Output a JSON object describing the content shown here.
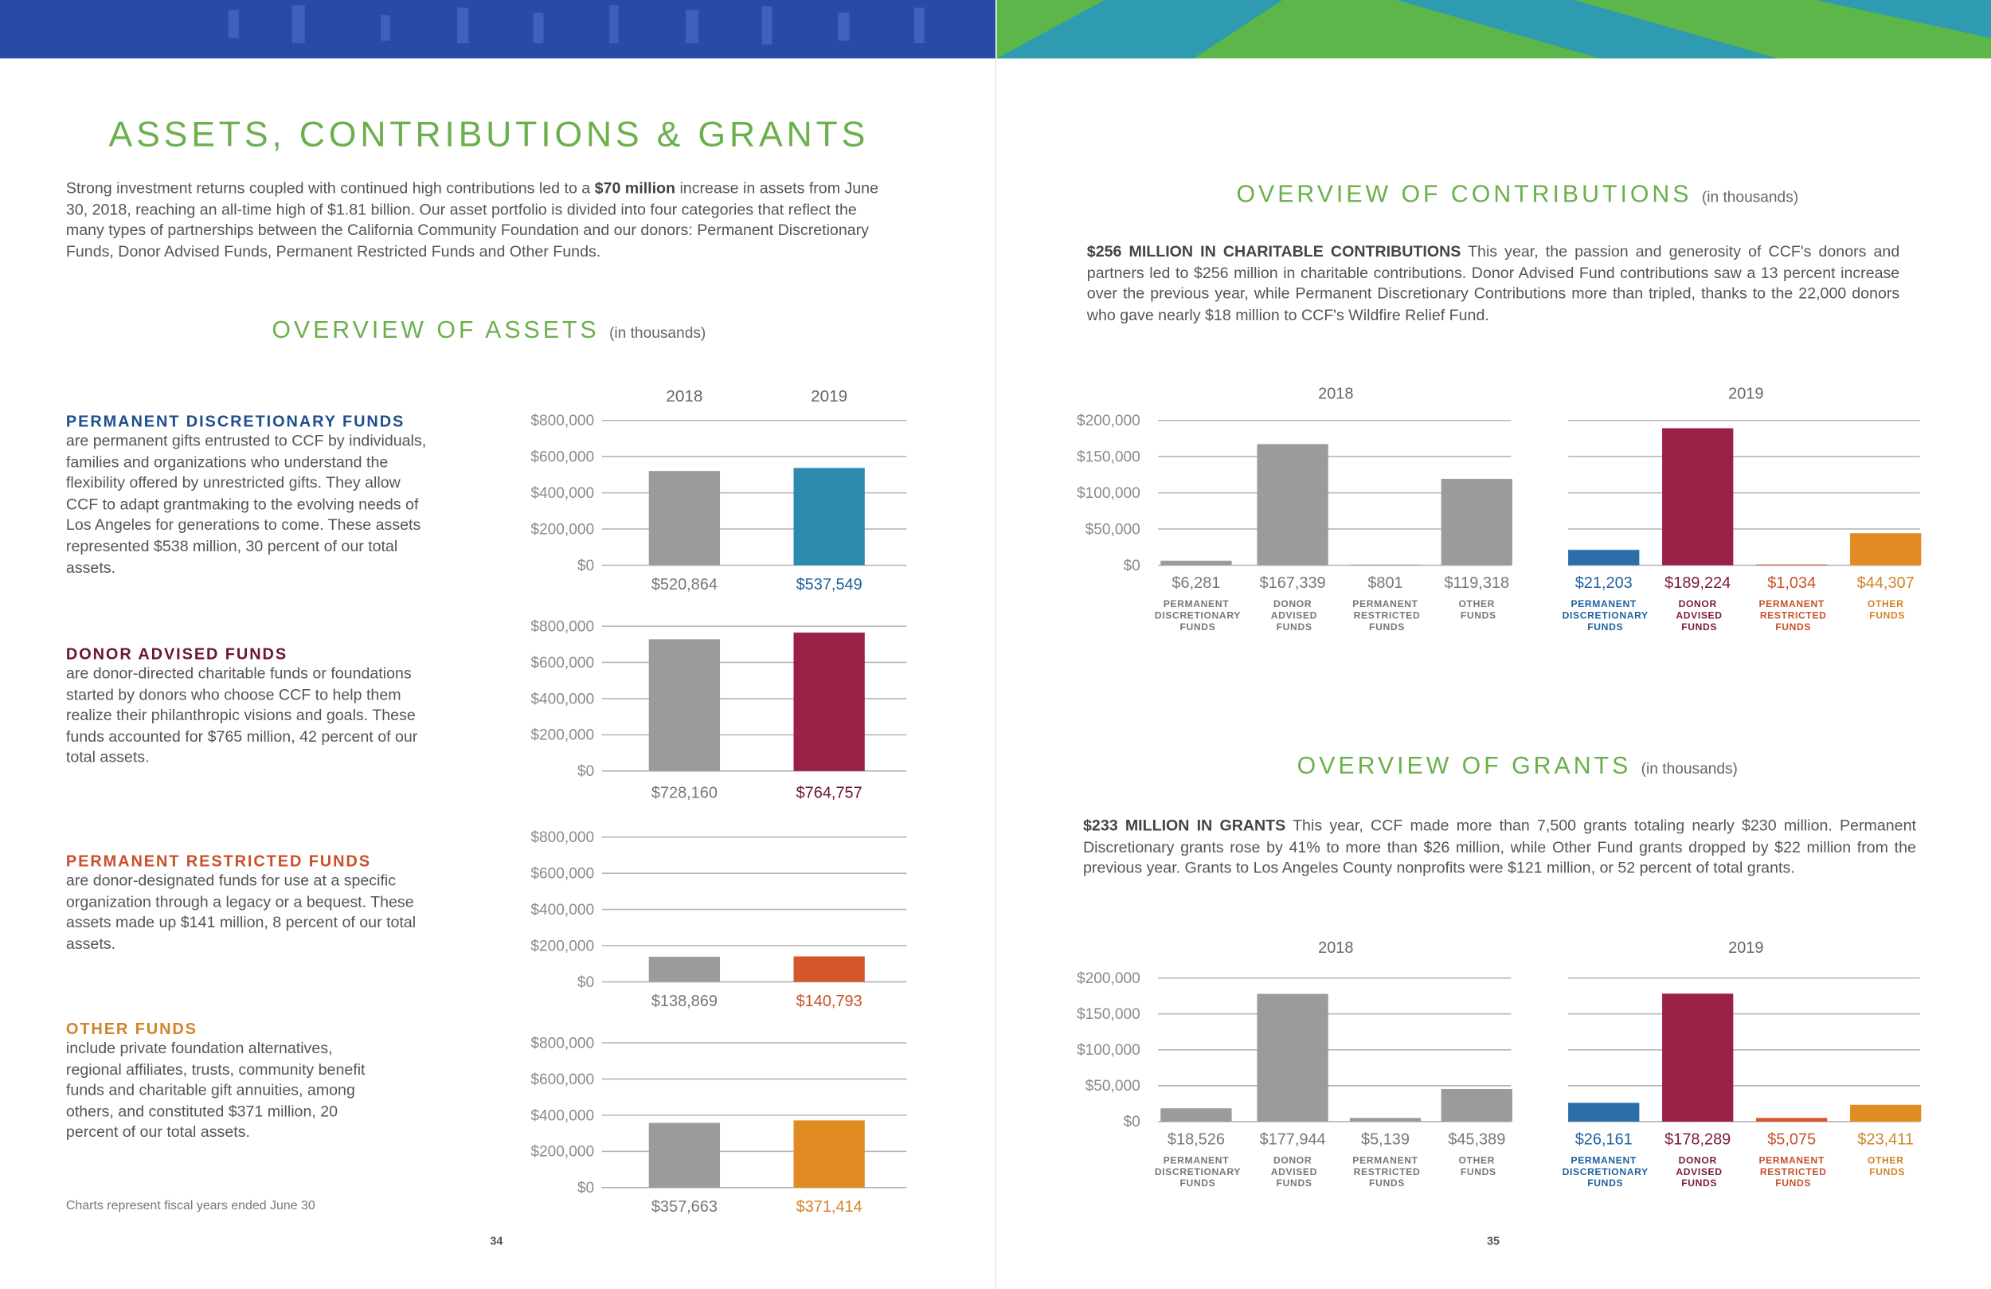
{
  "title": "ASSETS, CONTRIBUTIONS & GRANTS",
  "intro": [
    "Strong investment returns coupled with continued high contributions led to a ",
    "$70 million",
    " increase in assets from June 30, 2018, reaching an all-time high of $1.81 billion. Our asset portfolio is divided into four categories that reflect the many types of partnerships between the California Community Foundation and our donors: Permanent Discretionary Funds, Donor Advised Funds, Permanent Restricted Funds and Other Funds."
  ],
  "assets": {
    "heading": "OVERVIEW OF ASSETS",
    "unit": "(in thousands)"
  },
  "funds": [
    {
      "name": "PERMANENT DISCRETIONARY FUNDS",
      "color": "#1f4e8c",
      "text": "are permanent gifts entrusted to CCF by individuals, families and organizations who understand the flexibility offered by unrestricted gifts. They allow CCF to adapt grantmaking to the evolving needs of Los Angeles for generations to come. These assets represented $538 million, 30 percent of our total assets."
    },
    {
      "name": "DONOR ADVISED FUNDS",
      "color": "#6b1535",
      "text": "are donor-directed charitable funds or foundations started by donors who choose CCF to help them realize their philanthropic visions and goals. These funds accounted for $765 million, 42 percent of our total assets."
    },
    {
      "name": "PERMANENT RESTRICTED FUNDS",
      "color": "#c8502a",
      "text": "are donor-designated funds for use at a specific organization through a legacy or a bequest. These assets made up $141 million, 8 percent of our total assets."
    },
    {
      "name": "OTHER FUNDS",
      "color": "#d0832a",
      "text": "include private foundation alternatives, regional affiliates, trusts, community benefit funds and charitable gift annuities, among others, and constituted $371 million, 20 percent of our total assets."
    }
  ],
  "footnote": "Charts represent fiscal years ended June 30",
  "page_numbers": [
    "34",
    "35"
  ],
  "contributions": {
    "heading": "OVERVIEW OF CONTRIBUTIONS",
    "unit": "(in thousands)",
    "lead": "$256 MILLION IN CHARITABLE CONTRIBUTIONS",
    "text": " This year, the passion and generosity of CCF's donors and partners led to $256 million in charitable contributions. Donor Advised Fund contributions saw a 13 percent increase over the previous year, while Permanent Discretionary Contributions more than tripled, thanks to the 22,000 donors who gave nearly $18 million to CCF's Wildfire Relief Fund."
  },
  "grants": {
    "heading": "OVERVIEW OF GRANTS",
    "unit": "(in thousands)",
    "lead": "$233 MILLION IN GRANTS",
    "text": " This year, CCF made more than 7,500 grants totaling nearly $230 million. Permanent Discretionary grants rose by 41% to more than $26 million, while Other Fund grants dropped by $22 million from the previous year. Grants to Los Angeles County nonprofits were $121 million, or 52 percent of total grants."
  },
  "chart_data": [
    {
      "type": "bar",
      "categories": [
        "2018",
        "2019"
      ],
      "values": [
        520864,
        537549
      ],
      "value_labels": [
        "$520,864",
        "$537,549"
      ],
      "colors": [
        "#9b9b9b",
        "#2d8bb0"
      ],
      "text_colors": [
        "#777777",
        "#1f5f9e"
      ],
      "category_colors": [
        "#666666",
        "#666666"
      ],
      "ylim": [
        0,
        800000
      ],
      "yticks": [
        {
          "value": 0,
          "label": "$0"
        },
        {
          "value": 200000,
          "label": "$200,000"
        },
        {
          "value": 400000,
          "label": "$400,000"
        },
        {
          "value": 600000,
          "label": "$600,000"
        },
        {
          "value": 800000,
          "label": "$800,000"
        }
      ],
      "grid": true,
      "show_ytick_labels": true
    },
    {
      "type": "bar",
      "categories": [
        null,
        null
      ],
      "values": [
        728160,
        764757
      ],
      "value_labels": [
        "$728,160",
        "$764,757"
      ],
      "colors": [
        "#9b9b9b",
        "#9b2045"
      ],
      "text_colors": [
        "#777777",
        "#6b1535"
      ],
      "ylim": [
        0,
        800000
      ],
      "yticks": [
        {
          "value": 0,
          "label": "$0"
        },
        {
          "value": 200000,
          "label": "$200,000"
        },
        {
          "value": 400000,
          "label": "$400,000"
        },
        {
          "value": 600000,
          "label": "$600,000"
        },
        {
          "value": 800000,
          "label": "$800,000"
        }
      ],
      "grid": true,
      "show_ytick_labels": true
    },
    {
      "type": "bar",
      "categories": [
        null,
        null
      ],
      "values": [
        138869,
        140793
      ],
      "value_labels": [
        "$138,869",
        "$140,793"
      ],
      "colors": [
        "#9b9b9b",
        "#d5562a"
      ],
      "text_colors": [
        "#777777",
        "#c8502a"
      ],
      "ylim": [
        0,
        800000
      ],
      "yticks": [
        {
          "value": 0,
          "label": "$0"
        },
        {
          "value": 200000,
          "label": "$200,000"
        },
        {
          "value": 400000,
          "label": "$400,000"
        },
        {
          "value": 600000,
          "label": "$600,000"
        },
        {
          "value": 800000,
          "label": "$800,000"
        }
      ],
      "grid": true,
      "show_ytick_labels": true
    },
    {
      "type": "bar",
      "categories": [
        null,
        null
      ],
      "values": [
        357663,
        371414
      ],
      "value_labels": [
        "$357,663",
        "$371,414"
      ],
      "colors": [
        "#9b9b9b",
        "#e08c23"
      ],
      "text_colors": [
        "#777777",
        "#d0832a"
      ],
      "ylim": [
        0,
        800000
      ],
      "yticks": [
        {
          "value": 0,
          "label": "$0"
        },
        {
          "value": 200000,
          "label": "$200,000"
        },
        {
          "value": 400000,
          "label": "$400,000"
        },
        {
          "value": 600000,
          "label": "$600,000"
        },
        {
          "value": 800000,
          "label": "$800,000"
        }
      ],
      "grid": true,
      "show_ytick_labels": true
    },
    {
      "type": "bar",
      "title": "2018",
      "categories": [
        "PERMANENT DISCRETIONARY FUNDS",
        "DONOR ADVISED FUNDS",
        "PERMANENT RESTRICTED FUNDS",
        "OTHER FUNDS"
      ],
      "values": [
        6281,
        167339,
        801,
        119318
      ],
      "value_labels": [
        "$6,281",
        "$167,339",
        "$801",
        "$119,318"
      ],
      "colors": [
        "#9b9b9b",
        "#9b9b9b",
        "#9b9b9b",
        "#9b9b9b"
      ],
      "text_colors": [
        "#777777",
        "#777777",
        "#777777",
        "#777777"
      ],
      "category_colors": [
        "#777777",
        "#777777",
        "#777777",
        "#777777"
      ],
      "ylim": [
        0,
        200000
      ],
      "yticks": [
        {
          "value": 0,
          "label": "$0"
        },
        {
          "value": 50000,
          "label": "$50,000"
        },
        {
          "value": 100000,
          "label": "$100,000"
        },
        {
          "value": 150000,
          "label": "$150,000"
        },
        {
          "value": 200000,
          "label": "$200,000"
        }
      ],
      "grid": true,
      "show_ytick_labels": true
    },
    {
      "type": "bar",
      "title": "2019",
      "categories": [
        "PERMANENT DISCRETIONARY FUNDS",
        "DONOR ADVISED FUNDS",
        "PERMANENT RESTRICTED FUNDS",
        "OTHER FUNDS"
      ],
      "values": [
        21203,
        189224,
        1034,
        44307
      ],
      "value_labels": [
        "$21,203",
        "$189,224",
        "$1,034",
        "$44,307"
      ],
      "colors": [
        "#2b6ea8",
        "#9b2045",
        "#d5562a",
        "#e08c23"
      ],
      "text_colors": [
        "#1f5f9e",
        "#7a1a3a",
        "#c8502a",
        "#d0832a"
      ],
      "category_colors": [
        "#1f5f9e",
        "#7a1a3a",
        "#c8502a",
        "#d0832a"
      ],
      "ylim": [
        0,
        200000
      ],
      "yticks": [
        0,
        50000,
        100000,
        150000,
        200000
      ],
      "grid": true,
      "show_ytick_labels": false
    },
    {
      "type": "bar",
      "title": "2018",
      "categories": [
        "PERMANENT DISCRETIONARY FUNDS",
        "DONOR ADVISED FUNDS",
        "PERMANENT RESTRICTED FUNDS",
        "OTHER FUNDS"
      ],
      "values": [
        18526,
        177944,
        5139,
        45389
      ],
      "value_labels": [
        "$18,526",
        "$177,944",
        "$5,139",
        "$45,389"
      ],
      "colors": [
        "#9b9b9b",
        "#9b9b9b",
        "#9b9b9b",
        "#9b9b9b"
      ],
      "text_colors": [
        "#777777",
        "#777777",
        "#777777",
        "#777777"
      ],
      "category_colors": [
        "#777777",
        "#777777",
        "#777777",
        "#777777"
      ],
      "ylim": [
        0,
        200000
      ],
      "yticks": [
        {
          "value": 0,
          "label": "$0"
        },
        {
          "value": 50000,
          "label": "$50,000"
        },
        {
          "value": 100000,
          "label": "$100,000"
        },
        {
          "value": 150000,
          "label": "$150,000"
        },
        {
          "value": 200000,
          "label": "$200,000"
        }
      ],
      "grid": true,
      "show_ytick_labels": true
    },
    {
      "type": "bar",
      "title": "2019",
      "categories": [
        "PERMANENT DISCRETIONARY FUNDS",
        "DONOR ADVISED FUNDS",
        "PERMANENT RESTRICTED FUNDS",
        "OTHER FUNDS"
      ],
      "values": [
        26161,
        178289,
        5075,
        23411
      ],
      "value_labels": [
        "$26,161",
        "$178,289",
        "$5,075",
        "$23,411"
      ],
      "colors": [
        "#2b6ea8",
        "#9b2045",
        "#d5562a",
        "#e08c23"
      ],
      "text_colors": [
        "#1f5f9e",
        "#7a1a3a",
        "#c8502a",
        "#d0832a"
      ],
      "category_colors": [
        "#1f5f9e",
        "#7a1a3a",
        "#c8502a",
        "#d0832a"
      ],
      "ylim": [
        0,
        200000
      ],
      "yticks": [
        0,
        50000,
        100000,
        150000,
        200000
      ],
      "grid": true,
      "show_ytick_labels": false
    }
  ]
}
